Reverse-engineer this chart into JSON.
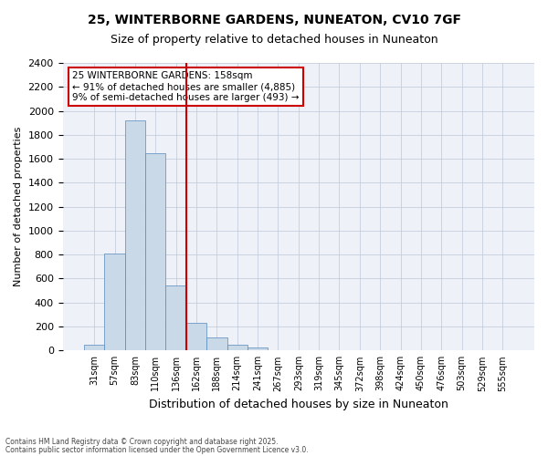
{
  "title1": "25, WINTERBORNE GARDENS, NUNEATON, CV10 7GF",
  "title2": "Size of property relative to detached houses in Nuneaton",
  "xlabel": "Distribution of detached houses by size in Nuneaton",
  "ylabel": "Number of detached properties",
  "bin_labels": [
    "31sqm",
    "57sqm",
    "83sqm",
    "110sqm",
    "136sqm",
    "162sqm",
    "188sqm",
    "214sqm",
    "241sqm",
    "267sqm",
    "293sqm",
    "319sqm",
    "345sqm",
    "372sqm",
    "398sqm",
    "424sqm",
    "450sqm",
    "476sqm",
    "503sqm",
    "529sqm",
    "555sqm"
  ],
  "bar_values": [
    50,
    810,
    1920,
    1650,
    540,
    230,
    110,
    50,
    25,
    0,
    0,
    0,
    0,
    0,
    0,
    0,
    0,
    0,
    0,
    0,
    0
  ],
  "bar_color": "#c9d9e8",
  "bar_edge_color": "#5588bb",
  "vline_pos": 4.5,
  "vline_color": "#cc0000",
  "ylim": [
    0,
    2400
  ],
  "yticks": [
    0,
    200,
    400,
    600,
    800,
    1000,
    1200,
    1400,
    1600,
    1800,
    2000,
    2200,
    2400
  ],
  "annotation_title": "25 WINTERBORNE GARDENS: 158sqm",
  "annotation_line1": "← 91% of detached houses are smaller (4,885)",
  "annotation_line2": "9% of semi-detached houses are larger (493) →",
  "annotation_box_color": "#cc0000",
  "bg_color": "#eef2f8",
  "footer1": "Contains HM Land Registry data © Crown copyright and database right 2025.",
  "footer2": "Contains public sector information licensed under the Open Government Licence v3.0."
}
